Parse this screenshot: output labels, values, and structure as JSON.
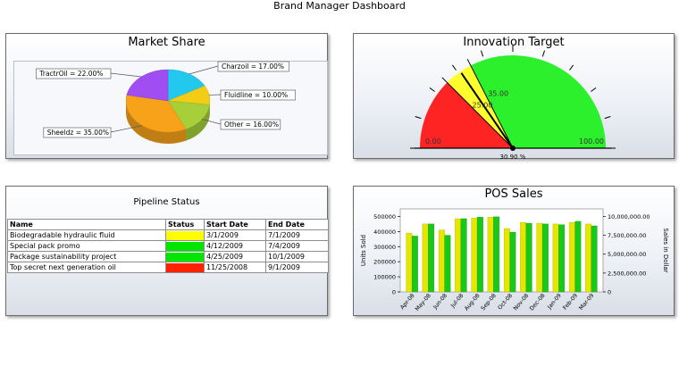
{
  "page": {
    "title": "Brand Manager Dashboard"
  },
  "market_share": {
    "title": "Market Share",
    "chart_data": {
      "type": "pie",
      "slices": [
        {
          "label": "Charzoil = 17.00%",
          "name": "Charzoil",
          "value": 17,
          "color": "#22c8ee"
        },
        {
          "label": "Fluidline = 10.00%",
          "name": "Fluidline",
          "value": 10,
          "color": "#f3cc16"
        },
        {
          "label": "Other = 16.00%",
          "name": "Other",
          "value": 16,
          "color": "#a6cf3a"
        },
        {
          "label": "Sheeldz = 35.00%",
          "name": "Sheeldz",
          "value": 35,
          "color": "#f8a21a"
        },
        {
          "label": "TractrOil = 22.00%",
          "name": "TractrOil",
          "value": 22,
          "color": "#a04ef2"
        }
      ]
    }
  },
  "innovation_target": {
    "title": "Innovation Target",
    "value_label": "30.90 %",
    "chart_data": {
      "type": "gauge",
      "min": 0,
      "max": 100,
      "value": 30.9,
      "target_markers": [
        25,
        35
      ],
      "bands": [
        {
          "from": 0,
          "to": 25,
          "color": "#ff2424"
        },
        {
          "from": 25,
          "to": 35,
          "color": "#ffff2e"
        },
        {
          "from": 35,
          "to": 100,
          "color": "#2cf02c"
        }
      ],
      "labels": [
        {
          "value": 0,
          "text": "0.00"
        },
        {
          "value": 25,
          "text": "25.00"
        },
        {
          "value": 35,
          "text": "35.00"
        },
        {
          "value": 100,
          "text": "100.00"
        }
      ]
    }
  },
  "pipeline": {
    "title": "Pipeline Status",
    "columns": [
      "Name",
      "Status",
      "Start Date",
      "End Date"
    ],
    "rows": [
      {
        "name": "Biodegradable hydraulic fluid",
        "status_color": "#ffff00",
        "start": "3/1/2009",
        "end": "7/1/2009"
      },
      {
        "name": "Special pack promo",
        "status_color": "#00e600",
        "start": "4/12/2009",
        "end": "7/4/2009"
      },
      {
        "name": "Package sustainability project",
        "status_color": "#00e600",
        "start": "4/25/2009",
        "end": "10/1/2009"
      },
      {
        "name": "Top secret next generation oil",
        "status_color": "#ff2200",
        "start": "11/25/2008",
        "end": "9/1/2009"
      }
    ]
  },
  "pos_sales": {
    "title": "POS Sales",
    "chart_data": {
      "type": "bar",
      "categories": [
        "Apr-08",
        "May-08",
        "Jun-08",
        "Jul-08",
        "Aug-08",
        "Sep-08",
        "Oct-08",
        "Nov-08",
        "Dec-08",
        "Jan-09",
        "Feb-09",
        "Mar-09"
      ],
      "series": [
        {
          "name": "Units Sold",
          "axis": "left",
          "color": "#e6e600",
          "values": [
            390000,
            450000,
            410000,
            485000,
            490000,
            495000,
            420000,
            460000,
            455000,
            450000,
            460000,
            450000
          ]
        },
        {
          "name": "Sales in Dollar",
          "axis": "right",
          "color": "#19c819",
          "values": [
            7400000,
            9000000,
            7500000,
            9700000,
            9900000,
            9950000,
            7900000,
            9100000,
            9000000,
            8900000,
            9350000,
            8750000
          ]
        }
      ],
      "ylabel": "Units Sold",
      "y2label": "Sales in Dollar",
      "ylim": [
        0,
        550000
      ],
      "y2lim": [
        0,
        11000000
      ],
      "yticks": [
        "0",
        "100000",
        "200000",
        "300000",
        "400000",
        "500000"
      ],
      "y2ticks": [
        "0",
        "2,500,000.00",
        "5,000,000.00",
        "7,500,000.00",
        "10,000,000.00"
      ]
    }
  }
}
